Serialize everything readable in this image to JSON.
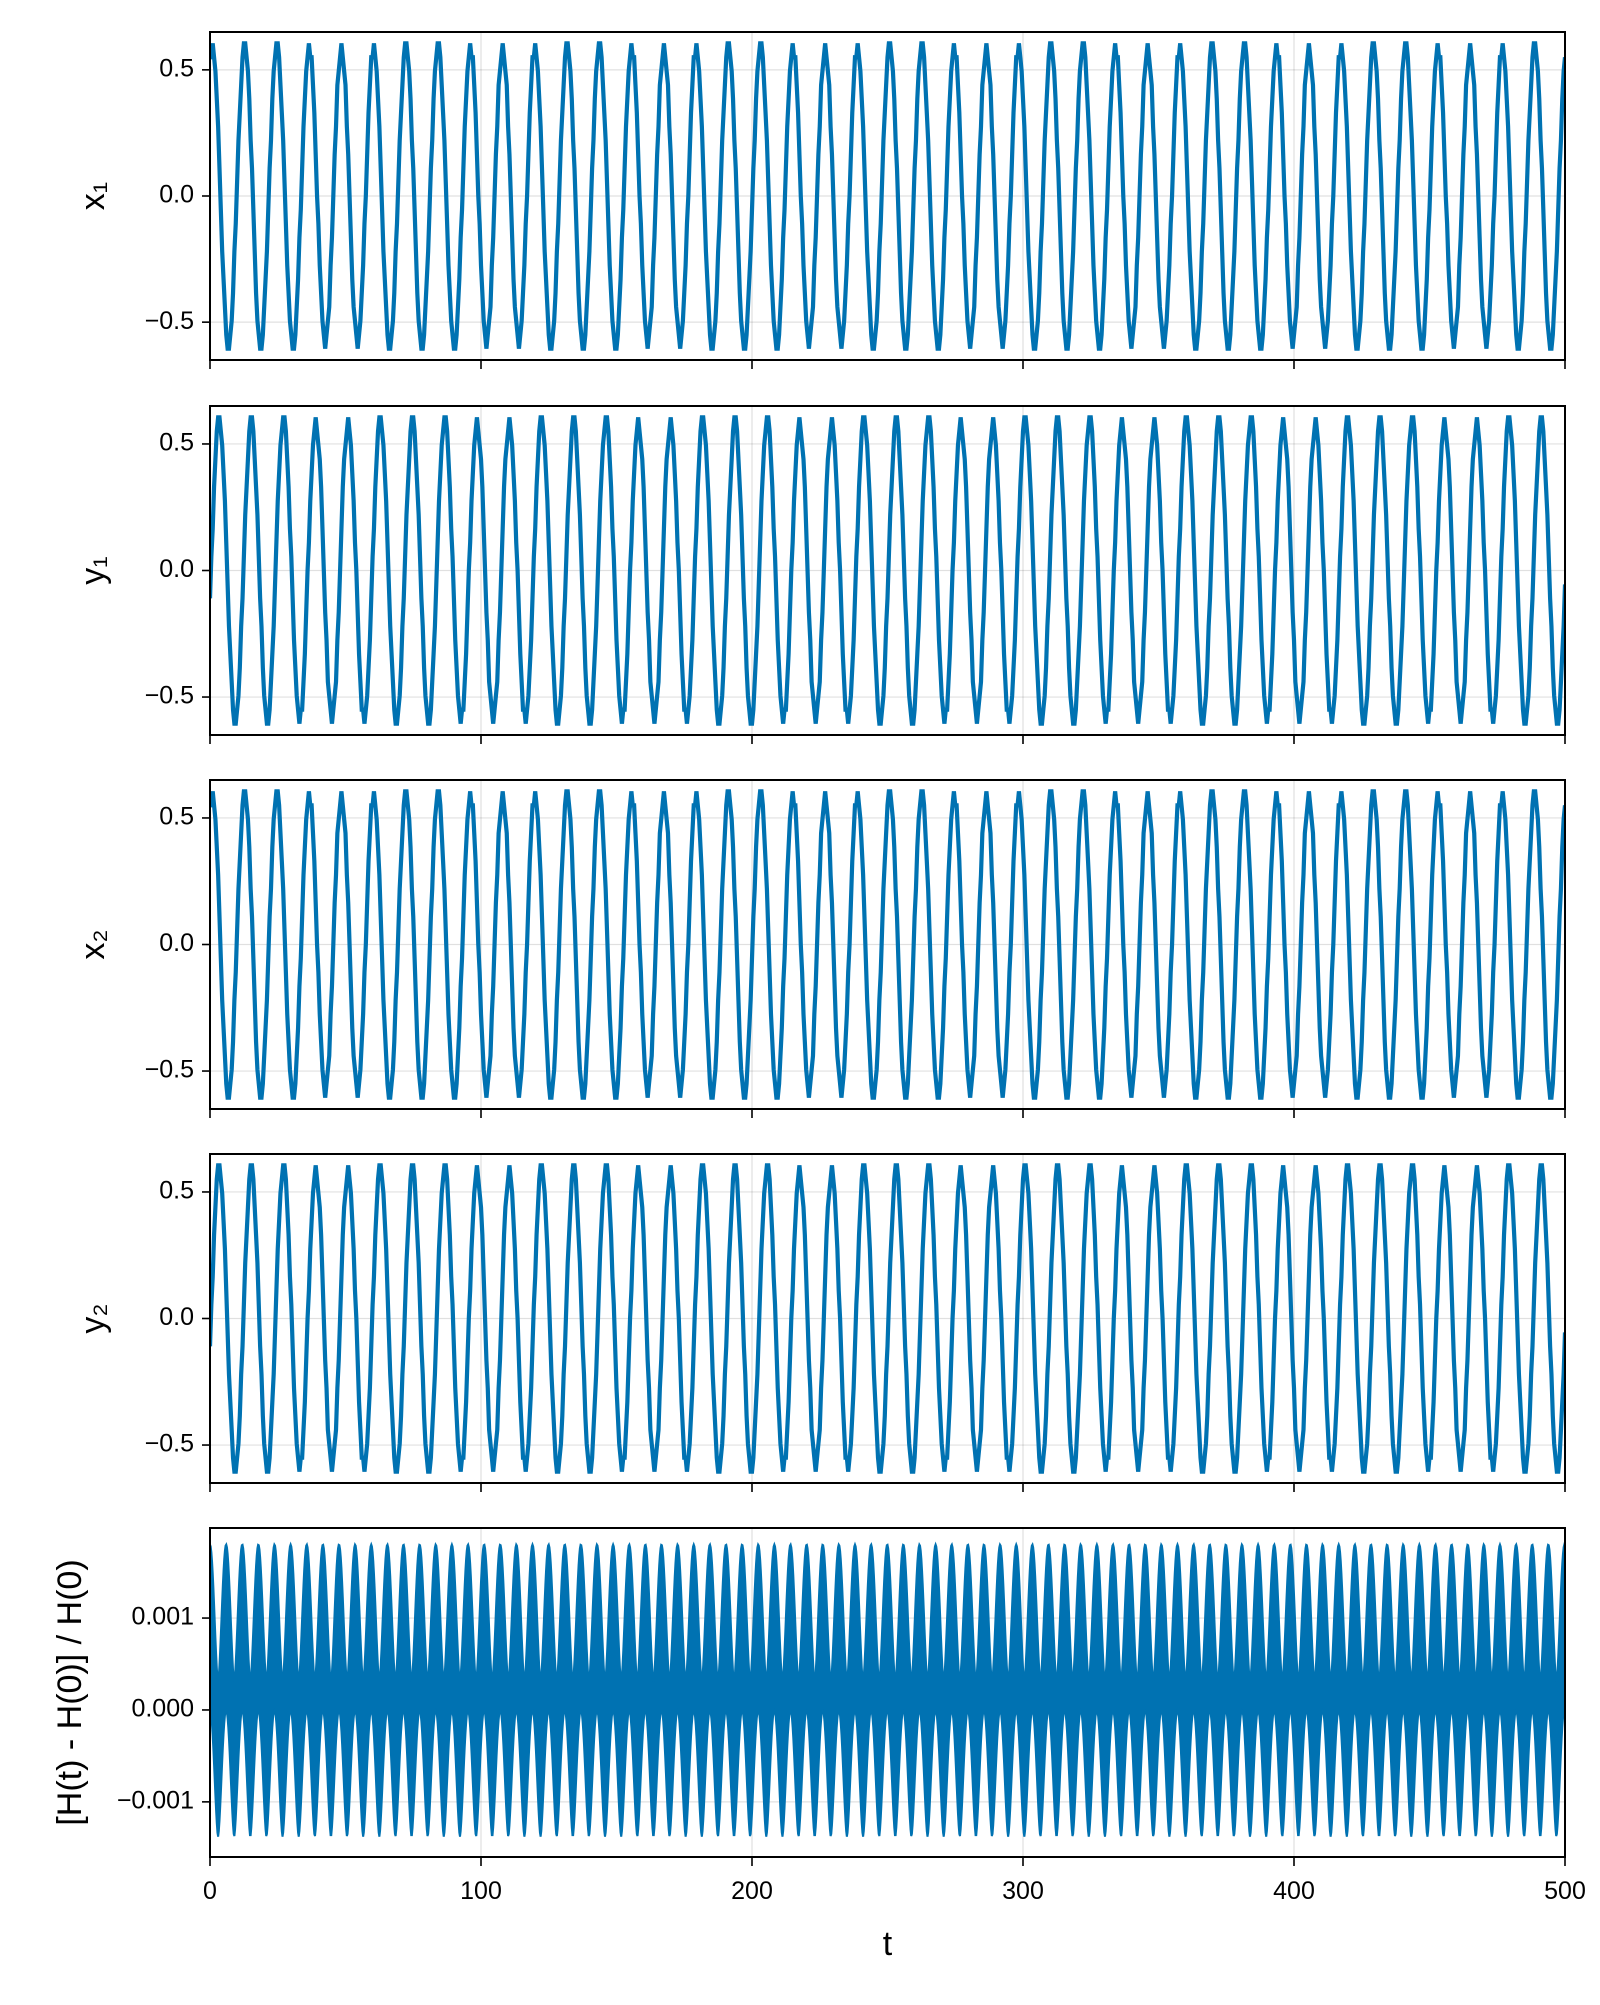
{
  "chart_data": [
    {
      "type": "line",
      "ylabel": "x₁",
      "xlim": [
        0,
        500
      ],
      "ylim": [
        -0.65,
        0.65
      ],
      "yticks": [
        -0.5,
        0.0,
        0.5
      ],
      "ytick_labels": [
        "−0.5",
        "0.0",
        "0.5"
      ],
      "xticks": [
        0,
        100,
        200,
        300,
        400,
        500
      ],
      "grid": true,
      "color": "#0072b2",
      "series": [
        {
          "signal": "stepped oscillation",
          "amplitude": 0.59,
          "period": 11.9,
          "phase": 1.1,
          "t_start": 0,
          "t_end": 500,
          "dt": 0.5
        }
      ]
    },
    {
      "type": "line",
      "ylabel": "y₁",
      "xlim": [
        0,
        500
      ],
      "ylim": [
        -0.65,
        0.65
      ],
      "yticks": [
        -0.5,
        0.0,
        0.5
      ],
      "ytick_labels": [
        "−0.5",
        "0.0",
        "0.5"
      ],
      "xticks": [
        0,
        100,
        200,
        300,
        400,
        500
      ],
      "grid": true,
      "color": "#0072b2",
      "series": [
        {
          "signal": "stepped oscillation",
          "amplitude": 0.59,
          "period": 11.9,
          "phase": -0.2,
          "t_start": 0,
          "t_end": 500,
          "dt": 0.5
        }
      ]
    },
    {
      "type": "line",
      "ylabel": "x₂",
      "xlim": [
        0,
        500
      ],
      "ylim": [
        -0.65,
        0.65
      ],
      "yticks": [
        -0.5,
        0.0,
        0.5
      ],
      "ytick_labels": [
        "−0.5",
        "0.0",
        "0.5"
      ],
      "xticks": [
        0,
        100,
        200,
        300,
        400,
        500
      ],
      "grid": true,
      "color": "#0072b2",
      "series": [
        {
          "signal": "stepped oscillation",
          "amplitude": 0.59,
          "period": 11.9,
          "phase": 1.1,
          "t_start": 0,
          "t_end": 500,
          "dt": 0.5
        }
      ]
    },
    {
      "type": "line",
      "ylabel": "y₂",
      "xlim": [
        0,
        500
      ],
      "ylim": [
        -0.65,
        0.65
      ],
      "yticks": [
        -0.5,
        0.0,
        0.5
      ],
      "ytick_labels": [
        "−0.5",
        "0.0",
        "0.5"
      ],
      "xticks": [
        0,
        100,
        200,
        300,
        400,
        500
      ],
      "grid": true,
      "color": "#0072b2",
      "series": [
        {
          "signal": "stepped oscillation",
          "amplitude": 0.59,
          "period": 11.9,
          "phase": -0.2,
          "t_start": 0,
          "t_end": 500,
          "dt": 0.5
        }
      ]
    },
    {
      "type": "area",
      "ylabel": "[H(t) - H(0)] / H(0)",
      "xlabel": "t",
      "xlim": [
        0,
        500
      ],
      "ylim": [
        -0.0016,
        0.00198
      ],
      "yticks": [
        -0.001,
        0.0,
        0.001
      ],
      "ytick_labels": [
        "−0.001",
        "0.000",
        "0.001"
      ],
      "xticks": [
        0,
        100,
        200,
        300,
        400,
        500
      ],
      "xtick_labels": [
        "0",
        "100",
        "200",
        "300",
        "400",
        "500"
      ],
      "grid": true,
      "color": "#0072b2",
      "series": [
        {
          "signal": "dense fast oscillation envelope",
          "upper_max": 0.0018,
          "upper_min": 0.0003,
          "lower_min": -0.00138,
          "lower_max": 0.0,
          "envelope_period": 11.9,
          "t_start": 0,
          "t_end": 500
        }
      ]
    }
  ]
}
